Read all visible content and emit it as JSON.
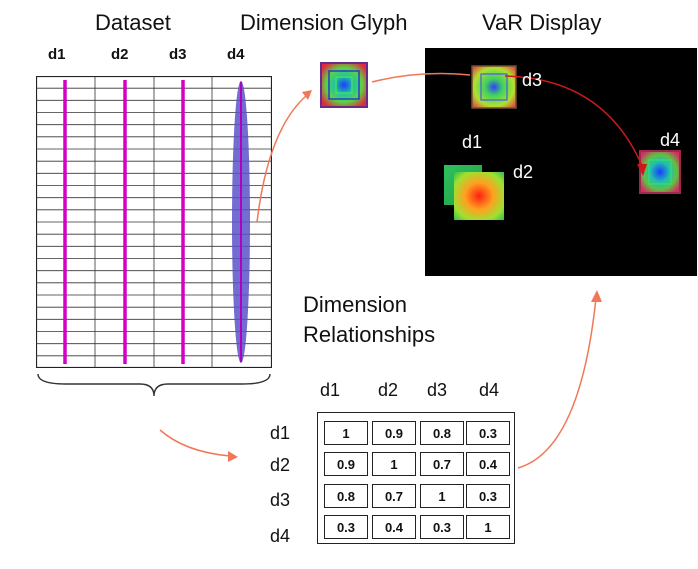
{
  "titles": {
    "dataset": "Dataset",
    "glyph": "Dimension Glyph",
    "var": "VaR Display",
    "relationships_line1": "Dimension",
    "relationships_line2": "Relationships"
  },
  "dataset": {
    "columns": [
      "d1",
      "d2",
      "d3",
      "d4"
    ],
    "row_count": 24
  },
  "var_display": {
    "labels": [
      "d3",
      "d1",
      "d2",
      "d4"
    ]
  },
  "matrix": {
    "col_headers": [
      "d1",
      "d2",
      "d3",
      "d4"
    ],
    "row_headers": [
      "d1",
      "d2",
      "d3",
      "d4"
    ],
    "values": [
      [
        "1",
        "0.9",
        "0.8",
        "0.3"
      ],
      [
        "0.9",
        "1",
        "0.7",
        "0.4"
      ],
      [
        "0.8",
        "0.7",
        "1",
        "0.3"
      ],
      [
        "0.3",
        "0.4",
        "0.3",
        "1"
      ]
    ]
  },
  "colors": {
    "column_line": "#d400c8",
    "ellipse": "#5b52c9",
    "arrow": "#f07858",
    "var_arrow": "#cc1a1a",
    "panel_bg": "#000000"
  }
}
